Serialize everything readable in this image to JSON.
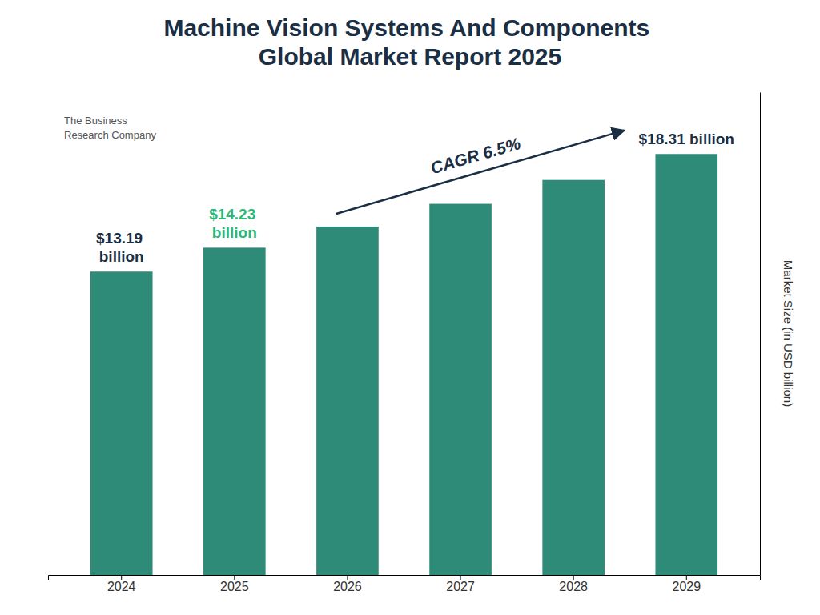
{
  "chart_data": {
    "type": "bar",
    "title": "Machine Vision Systems And Components\nGlobal Market Report 2025",
    "categories": [
      "2024",
      "2025",
      "2026",
      "2027",
      "2028",
      "2029"
    ],
    "values": [
      13.19,
      14.23,
      15.15,
      16.14,
      17.18,
      18.31
    ],
    "color": "#2d8b78",
    "ylabel": "Market Size (in USD billion)",
    "ylim": [
      0,
      21
    ],
    "tick_labels": "x",
    "grid": false,
    "annotations": [
      {
        "text": "$13.19\nbillion",
        "category": "2024",
        "color": "#1a2e44"
      },
      {
        "text": "$14.23\nbillion",
        "category": "2025",
        "color": "#2db87a"
      },
      {
        "text": "$18.31 billion",
        "category": "2029",
        "color": "#1a2e44"
      },
      {
        "text": "CAGR 6.5%",
        "from": "2026",
        "to": "2028",
        "color": "#1a2e44"
      },
      {
        "text": "The Business\nResearch Company",
        "color": "#555555"
      }
    ]
  }
}
